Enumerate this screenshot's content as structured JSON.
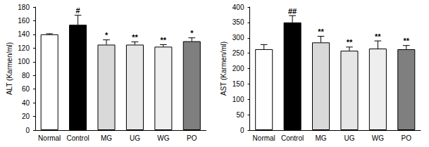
{
  "chart_data": [
    {
      "type": "bar",
      "ylabel": "ALT (Karmen/ml)",
      "categories": [
        "Normal",
        "Control",
        "MG",
        "UG",
        "WG",
        "PO"
      ],
      "values": [
        140,
        154,
        125,
        125,
        122,
        130
      ],
      "errors": [
        1,
        14,
        7,
        4,
        3,
        5
      ],
      "annotations": [
        null,
        "#",
        "*",
        "**",
        "**",
        "*"
      ],
      "colors": [
        "#ffffff",
        "#000000",
        "#d9d9d9",
        "#e6e6e6",
        "#eeeeee",
        "#7f7f7f"
      ],
      "ylim": [
        0,
        180
      ],
      "yticks": [
        0,
        20,
        40,
        60,
        80,
        100,
        120,
        140,
        160,
        180
      ],
      "grid": false
    },
    {
      "type": "bar",
      "ylabel": "AST (Karmen/ml)",
      "categories": [
        "Normal",
        "Control",
        "MG",
        "UG",
        "WG",
        "PO"
      ],
      "values": [
        263,
        350,
        285,
        258,
        265,
        263
      ],
      "errors": [
        15,
        22,
        20,
        12,
        25,
        12
      ],
      "annotations": [
        null,
        "##",
        "**",
        "**",
        "**",
        "**"
      ],
      "colors": [
        "#ffffff",
        "#000000",
        "#d9d9d9",
        "#e6e6e6",
        "#eeeeee",
        "#7f7f7f"
      ],
      "ylim": [
        0,
        400
      ],
      "yticks": [
        0,
        50,
        100,
        150,
        200,
        250,
        300,
        350,
        400
      ],
      "grid": false
    }
  ]
}
